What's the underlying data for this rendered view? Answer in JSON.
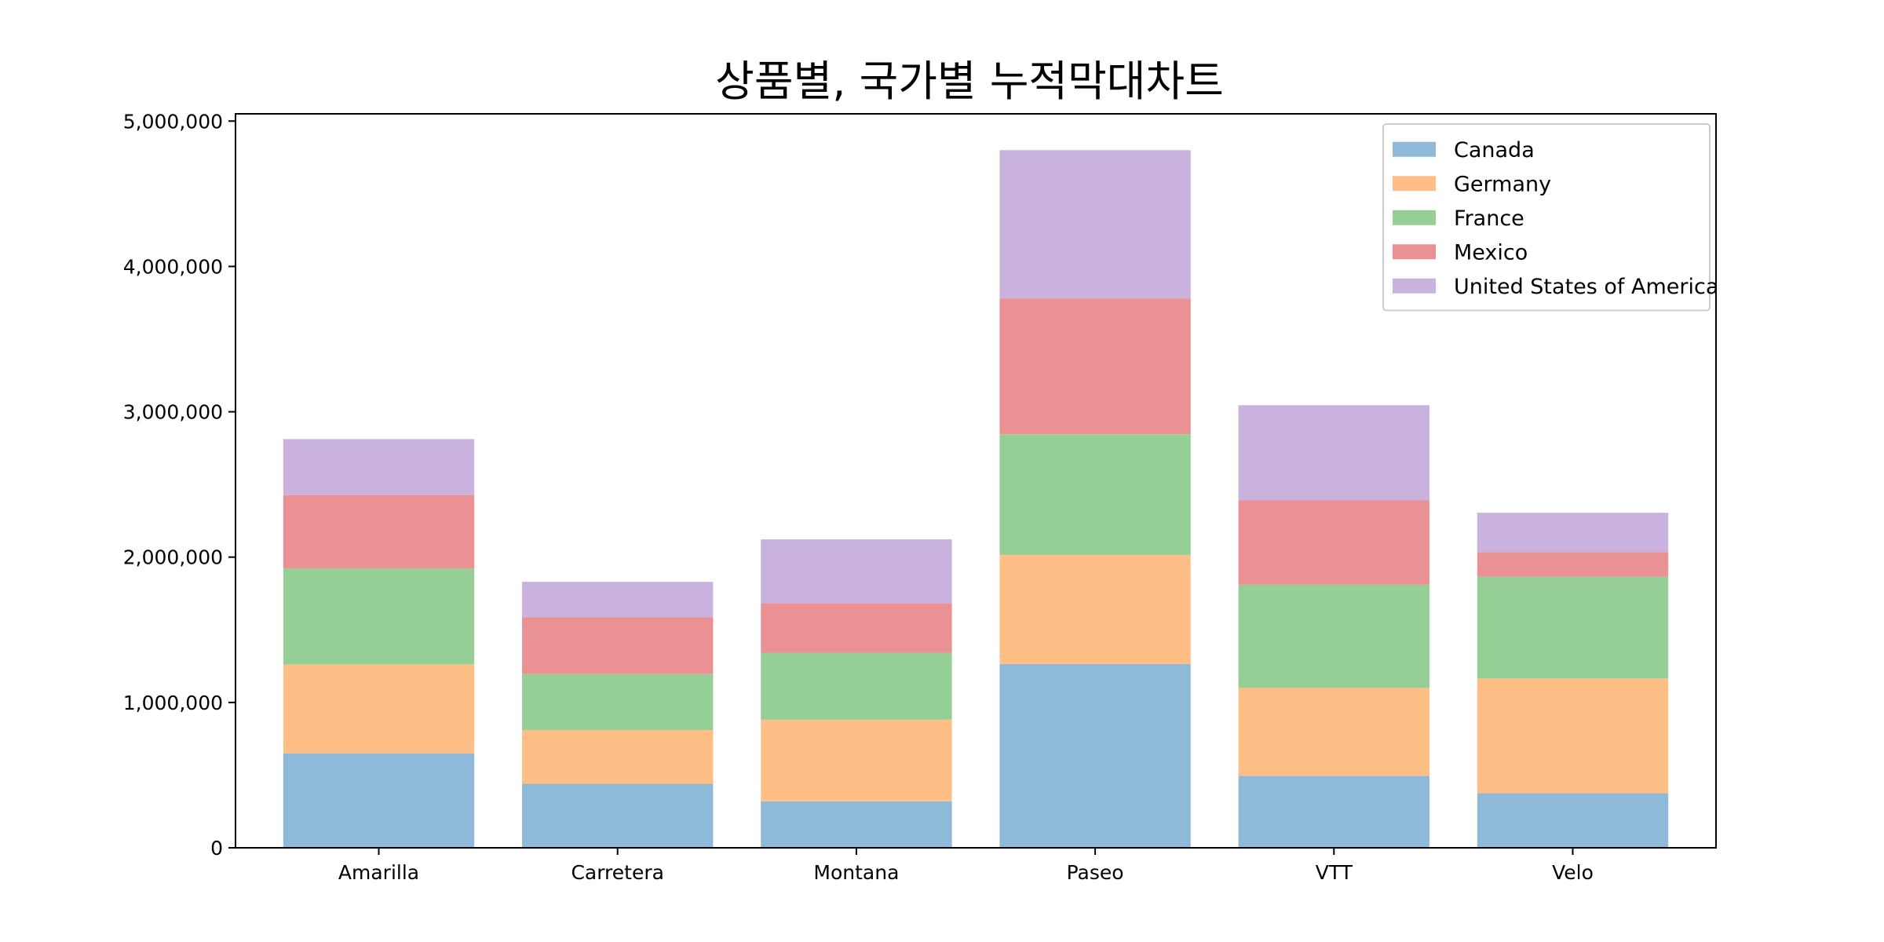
{
  "chart_data": {
    "type": "bar",
    "stacked": true,
    "title": "상품별, 국가별 누적막대차트",
    "xlabel": "",
    "ylabel": "",
    "categories": [
      "Amarilla",
      "Carretera",
      "Montana",
      "Paseo",
      "VTT",
      "Velo"
    ],
    "series": [
      {
        "name": "Canada",
        "color": "#8fb9d9",
        "values": [
          650000,
          440000,
          320000,
          1265000,
          495000,
          375000
        ]
      },
      {
        "name": "Germany",
        "color": "#ffbe86",
        "values": [
          612000,
          370000,
          562000,
          750000,
          605000,
          790000
        ]
      },
      {
        "name": "France",
        "color": "#95cf95",
        "values": [
          660000,
          385000,
          460000,
          830000,
          710000,
          700000
        ]
      },
      {
        "name": "Mexico",
        "color": "#ea9293",
        "values": [
          505000,
          390000,
          340000,
          935000,
          580000,
          170000
        ]
      },
      {
        "name": "United States of America",
        "color": "#c9b2dd",
        "values": [
          385000,
          245000,
          440000,
          1020000,
          655000,
          270000
        ]
      }
    ],
    "ylim": [
      0,
      5050000
    ],
    "yticks": [
      0,
      1000000,
      2000000,
      3000000,
      4000000,
      5000000
    ],
    "ytick_labels": [
      "0",
      "1,000,000",
      "2,000,000",
      "3,000,000",
      "4,000,000",
      "5,000,000"
    ],
    "grid": false,
    "legend_position": "top-right"
  }
}
